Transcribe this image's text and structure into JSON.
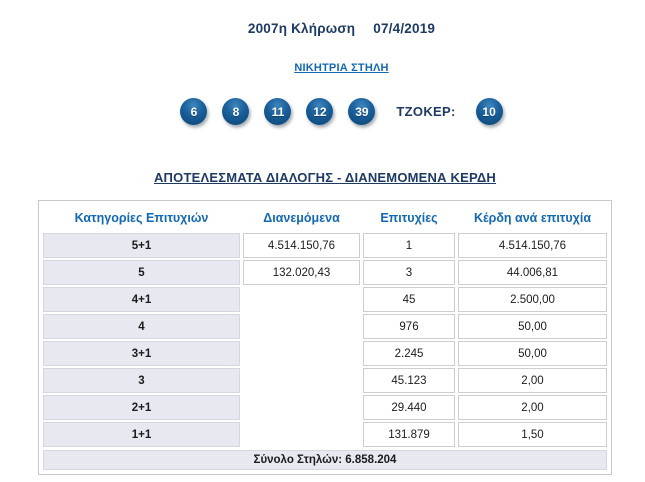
{
  "header": {
    "draw_title": "2007η Κλήρωση",
    "draw_date": "07/4/2019",
    "winning_column_link": "ΝΙΚΗΤΡΙΑ ΣΤΗΛΗ"
  },
  "draw": {
    "numbers": [
      "6",
      "8",
      "11",
      "12",
      "39"
    ],
    "tzoker_label": "ΤΖΟΚΕΡ:",
    "tzoker_number": "10"
  },
  "results": {
    "heading": "ΑΠΟΤΕΛΕΣΜΑΤΑ ΔΙΑΛΟΓΗΣ - ΔΙΑΝΕΜΟΜΕΝΑ ΚΕΡΔΗ",
    "columns": [
      "Κατηγορίες Επιτυχιών",
      "Διανεμόμενα",
      "Επιτυχίες",
      "Κέρδη ανά επιτυχία"
    ],
    "rows": [
      {
        "category": "5+1",
        "distributed": "4.514.150,76",
        "winners": "1",
        "prize": "4.514.150,76"
      },
      {
        "category": "5",
        "distributed": "132.020,43",
        "winners": "3",
        "prize": "44.006,81"
      },
      {
        "category": "4+1",
        "distributed": "",
        "winners": "45",
        "prize": "2.500,00"
      },
      {
        "category": "4",
        "distributed": "",
        "winners": "976",
        "prize": "50,00"
      },
      {
        "category": "3+1",
        "distributed": "",
        "winners": "2.245",
        "prize": "50,00"
      },
      {
        "category": "3",
        "distributed": "",
        "winners": "45.123",
        "prize": "2,00"
      },
      {
        "category": "2+1",
        "distributed": "",
        "winners": "29.440",
        "prize": "2,00"
      },
      {
        "category": "1+1",
        "distributed": "",
        "winners": "131.879",
        "prize": "1,50"
      }
    ],
    "total_label": "Σύνολο Στηλών: 6.858.204"
  },
  "colors": {
    "navy_text": "#1e3a64",
    "link_blue": "#1268b3",
    "ball_blue": "#14568c",
    "row_shade_bg": "#e7e8f0",
    "cell_border": "#cdced4"
  }
}
